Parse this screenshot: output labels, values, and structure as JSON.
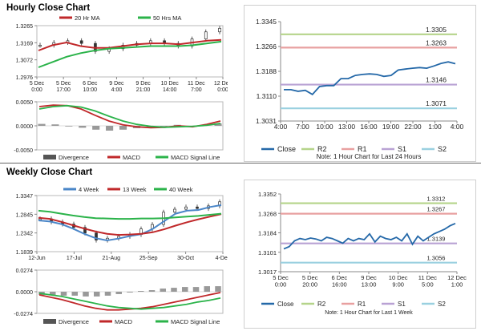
{
  "sections": {
    "hourly_title": "Hourly Close Chart",
    "weekly_title": "Weekly Close Chart"
  },
  "colors": {
    "ma_short": "#c0282a",
    "ma_long": "#2bb34a",
    "price": "#333333",
    "macd": "#c0282a",
    "signal": "#2bb34a",
    "divergence": "#999999",
    "close": "#2468a8",
    "r2": "#b5d48a",
    "r1": "#e8a0a0",
    "s1": "#b9a2d4",
    "s2": "#9ad0e0",
    "fourweek": "#4a86c8"
  },
  "chart_data": [
    {
      "id": "hourly_price",
      "type": "line",
      "x_ticks": [
        "5 Dec\n0:00",
        "5 Dec\n17:00",
        "6 Dec\n10:00",
        "9 Dec\n4:00",
        "9 Dec\n21:00",
        "10 Dec\n14:00",
        "11 Dec\n7:00",
        "12 Dec\n0:00"
      ],
      "y_ticks": [
        "1.3265",
        "1.3169",
        "1.3072",
        "1.2976"
      ],
      "ylim": [
        1.2976,
        1.3265
      ],
      "legend": [
        "20 Hr MA",
        "50 Hrs MA"
      ],
      "series": [
        {
          "name": "20 Hr MA",
          "values": [
            1.3125,
            1.3155,
            1.317,
            1.315,
            1.314,
            1.314,
            1.315,
            1.316,
            1.3165,
            1.3165,
            1.316,
            1.317,
            1.318,
            1.3185
          ]
        },
        {
          "name": "50 Hrs MA",
          "values": [
            1.303,
            1.306,
            1.309,
            1.311,
            1.3125,
            1.3135,
            1.314,
            1.3145,
            1.315,
            1.315,
            1.315,
            1.3155,
            1.3165,
            1.3175
          ]
        },
        {
          "name": "",
          "values": [
            1.3155,
            1.317,
            1.318,
            1.3165,
            1.312,
            1.3135,
            1.3155,
            1.3165,
            1.318,
            1.3165,
            1.315,
            1.319,
            1.323,
            1.325
          ]
        }
      ]
    },
    {
      "id": "hourly_macd",
      "type": "line",
      "x_ticks": [],
      "y_ticks": [
        "0.0050",
        "0.0000",
        "-0.0050"
      ],
      "ylim": [
        -0.005,
        0.005
      ],
      "legend": [
        "Divergence",
        "MACD",
        "MACD Signal Line"
      ],
      "series": [
        {
          "name": "MACD",
          "values": [
            0.004,
            0.0043,
            0.0042,
            0.0035,
            0.0022,
            0.001,
            0.0002,
            -0.0002,
            -0.0004,
            -0.0003,
            0.0,
            -0.0002,
            0.0003,
            0.001
          ]
        },
        {
          "name": "MACD Signal Line",
          "values": [
            0.0035,
            0.004,
            0.0042,
            0.0039,
            0.0031,
            0.002,
            0.001,
            0.0003,
            -0.0001,
            -0.0003,
            -0.0002,
            -0.0001,
            0.0001,
            0.0005
          ]
        },
        {
          "name": "Divergence",
          "values": [
            0.0004,
            0.0003,
            0.0,
            -0.0004,
            -0.0008,
            -0.001,
            -0.0008,
            -0.0005,
            -0.0003,
            0.0,
            0.0002,
            -0.0001,
            0.0002,
            0.0005
          ]
        }
      ]
    },
    {
      "id": "hourly_sr",
      "type": "line",
      "x_ticks": [
        "4:00",
        "7:00",
        "10:00",
        "13:00",
        "16:00",
        "19:00",
        "22:00",
        "1:00",
        "4:00"
      ],
      "y_ticks": [
        "1.3345",
        "1.3266",
        "1.3188",
        "1.3110",
        "1.3031"
      ],
      "ylim": [
        1.3031,
        1.3345
      ],
      "legend": [
        "Close",
        "R2",
        "R1",
        "S1",
        "S2"
      ],
      "note": "Note: 1 Hour Chart for Last 24 Hours",
      "levels": [
        {
          "name": "R2",
          "value": 1.3305,
          "label": "1.3305"
        },
        {
          "name": "R1",
          "value": 1.3263,
          "label": "1.3263"
        },
        {
          "name": "S1",
          "value": 1.3146,
          "label": "1.3146"
        },
        {
          "name": "S2",
          "value": 1.3071,
          "label": "1.3071"
        }
      ],
      "series": [
        {
          "name": "Close",
          "values": [
            1.313,
            1.313,
            1.3125,
            1.3128,
            1.3115,
            1.314,
            1.3143,
            1.3143,
            1.3165,
            1.3165,
            1.3175,
            1.3178,
            1.318,
            1.3178,
            1.3172,
            1.3175,
            1.3192,
            1.3195,
            1.3198,
            1.32,
            1.3198,
            1.3205,
            1.3213,
            1.3218,
            1.3212
          ]
        }
      ]
    },
    {
      "id": "weekly_price",
      "type": "line",
      "x_ticks": [
        "12-Jun",
        "17-Jul",
        "21-Aug",
        "25-Sep",
        "30-Oct",
        "4-Dec"
      ],
      "y_ticks": [
        "1.3347",
        "1.2845",
        "1.2342",
        "1.1839"
      ],
      "ylim": [
        1.1839,
        1.3347
      ],
      "legend": [
        "4 Week",
        "13 Week",
        "40 Week"
      ],
      "series": [
        {
          "name": "4 Week",
          "values": [
            1.268,
            1.265,
            1.258,
            1.246,
            1.232,
            1.22,
            1.214,
            1.219,
            1.226,
            1.231,
            1.245,
            1.266,
            1.286,
            1.294,
            1.296,
            1.304,
            1.309
          ]
        },
        {
          "name": "13 Week",
          "values": [
            1.275,
            1.272,
            1.264,
            1.255,
            1.246,
            1.238,
            1.232,
            1.229,
            1.23,
            1.232,
            1.236,
            1.244,
            1.254,
            1.263,
            1.271,
            1.278,
            1.285
          ]
        },
        {
          "name": "40 Week",
          "values": [
            1.294,
            1.291,
            1.286,
            1.281,
            1.277,
            1.274,
            1.273,
            1.272,
            1.272,
            1.273,
            1.273,
            1.274,
            1.276,
            1.278,
            1.28,
            1.283,
            1.286
          ]
        },
        {
          "name": "",
          "values": [
            1.272,
            1.264,
            1.258,
            1.249,
            1.234,
            1.215,
            1.22,
            1.225,
            1.23,
            1.245,
            1.257,
            1.29,
            1.298,
            1.304,
            1.3,
            1.307,
            1.318
          ]
        }
      ]
    },
    {
      "id": "weekly_macd",
      "type": "line",
      "x_ticks": [],
      "y_ticks": [
        "0.0274",
        "0.0000",
        "-0.0274"
      ],
      "ylim": [
        -0.0274,
        0.0274
      ],
      "legend": [
        "Divergence",
        "MACD",
        "MACD Signal Line"
      ],
      "series": [
        {
          "name": "MACD",
          "values": [
            -0.004,
            -0.007,
            -0.01,
            -0.014,
            -0.018,
            -0.021,
            -0.023,
            -0.023,
            -0.022,
            -0.021,
            -0.019,
            -0.016,
            -0.013,
            -0.01,
            -0.007,
            -0.004,
            -0.001
          ]
        },
        {
          "name": "MACD Signal Line",
          "values": [
            -0.002,
            -0.004,
            -0.006,
            -0.009,
            -0.012,
            -0.015,
            -0.018,
            -0.02,
            -0.021,
            -0.022,
            -0.021,
            -0.02,
            -0.018,
            -0.016,
            -0.013,
            -0.011,
            -0.008
          ]
        },
        {
          "name": "Divergence",
          "values": [
            -0.004,
            -0.004,
            -0.005,
            -0.005,
            -0.006,
            -0.006,
            -0.005,
            -0.003,
            -0.001,
            0.001,
            0.002,
            0.004,
            0.005,
            0.006,
            0.006,
            0.007,
            0.007
          ]
        }
      ]
    },
    {
      "id": "weekly_sr",
      "type": "line",
      "x_ticks": [
        "5 Dec\n0:00",
        "5 Dec\n20:00",
        "6 Dec\n16:00",
        "9 Dec\n13:00",
        "10 Dec\n9:00",
        "11 Dec\n5:00",
        "12 Dec\n1:00"
      ],
      "y_ticks": [
        "1.3352",
        "1.3268",
        "1.3184",
        "1.3101",
        "1.3017"
      ],
      "ylim": [
        1.3017,
        1.3352
      ],
      "legend": [
        "Close",
        "R2",
        "R1",
        "S1",
        "S2"
      ],
      "note": "Note: 1 Hour Chart for Last 1 Week",
      "levels": [
        {
          "name": "R2",
          "value": 1.3312,
          "label": "1.3312"
        },
        {
          "name": "R1",
          "value": 1.3267,
          "label": "1.3267"
        },
        {
          "name": "S1",
          "value": 1.3139,
          "label": "1.3139"
        },
        {
          "name": "S2",
          "value": 1.3056,
          "label": "1.3056"
        }
      ],
      "series": [
        {
          "name": "Close",
          "values": [
            1.3115,
            1.3125,
            1.315,
            1.316,
            1.3155,
            1.3162,
            1.3158,
            1.315,
            1.3165,
            1.316,
            1.315,
            1.314,
            1.316,
            1.315,
            1.316,
            1.3155,
            1.318,
            1.3145,
            1.317,
            1.316,
            1.3155,
            1.3165,
            1.315,
            1.318,
            1.3135,
            1.317,
            1.315,
            1.3165,
            1.318,
            1.319,
            1.32,
            1.3215,
            1.3225
          ]
        }
      ]
    }
  ]
}
